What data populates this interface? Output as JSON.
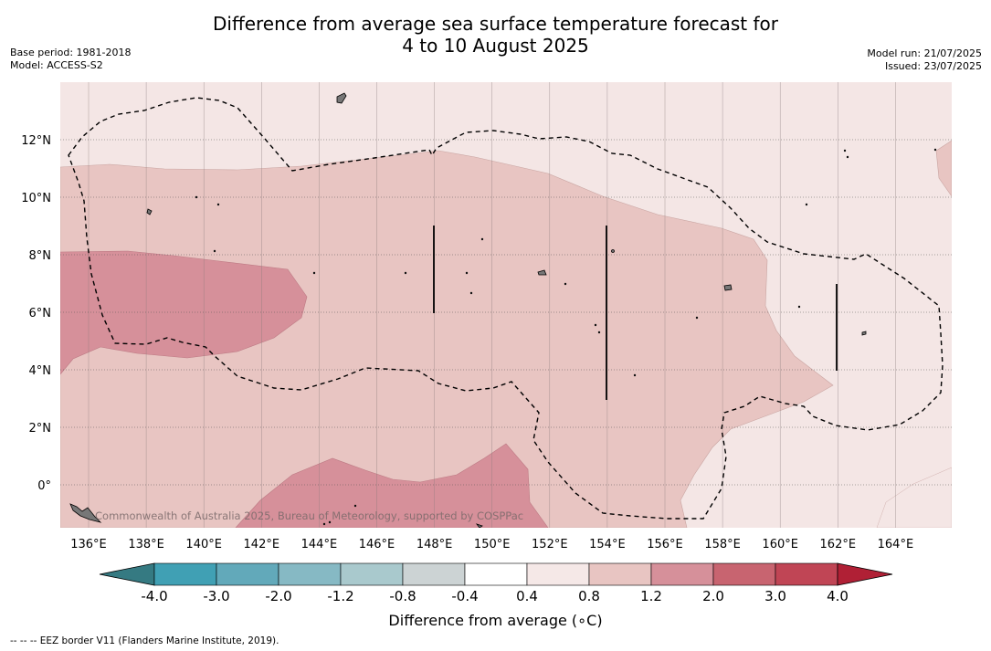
{
  "title_line1": "Difference from average sea surface temperature forecast for",
  "title_line2": "4 to 10 August 2025",
  "base_period": "Base period: 1981-2018",
  "model": "Model: ACCESS-S2",
  "model_run": "Model run: 21/07/2025",
  "issued": "Issued: 23/07/2025",
  "copyright": "Commonwealth of Australia 2025, Bureau of Meteorology, supported by COSPPac",
  "colorbar_title": "Difference from average (∘C)",
  "footnote": "--  --  -- EEZ border V11 (Flanders Marine Institute, 2019).",
  "colorbar": {
    "ticks": [
      "-4.0",
      "-3.0",
      "-2.0",
      "-1.2",
      "-0.8",
      "-0.4",
      "0.4",
      "0.8",
      "1.2",
      "2.0",
      "3.0",
      "4.0"
    ],
    "colors": [
      "#40a0b4",
      "#62a9ba",
      "#86b9c4",
      "#a9c9cd",
      "#ccd3d4",
      "#ffffff",
      "#f5e8e7",
      "#e8c5c2",
      "#d6909a",
      "#c86470",
      "#c04555"
    ],
    "under_color": "#357a82",
    "over_color": "#b02035"
  },
  "map": {
    "lon_labels": [
      "136°E",
      "138°E",
      "140°E",
      "142°E",
      "144°E",
      "146°E",
      "148°E",
      "150°E",
      "152°E",
      "154°E",
      "156°E",
      "158°E",
      "160°E",
      "162°E",
      "164°E"
    ],
    "lat_labels": [
      "12°N",
      "10°N",
      "8°N",
      "6°N",
      "4°N",
      "2°N",
      "0°"
    ],
    "colors": {
      "light": "#f4e6e5",
      "mid": "#e8c5c2",
      "strong": "#d6909a"
    }
  }
}
